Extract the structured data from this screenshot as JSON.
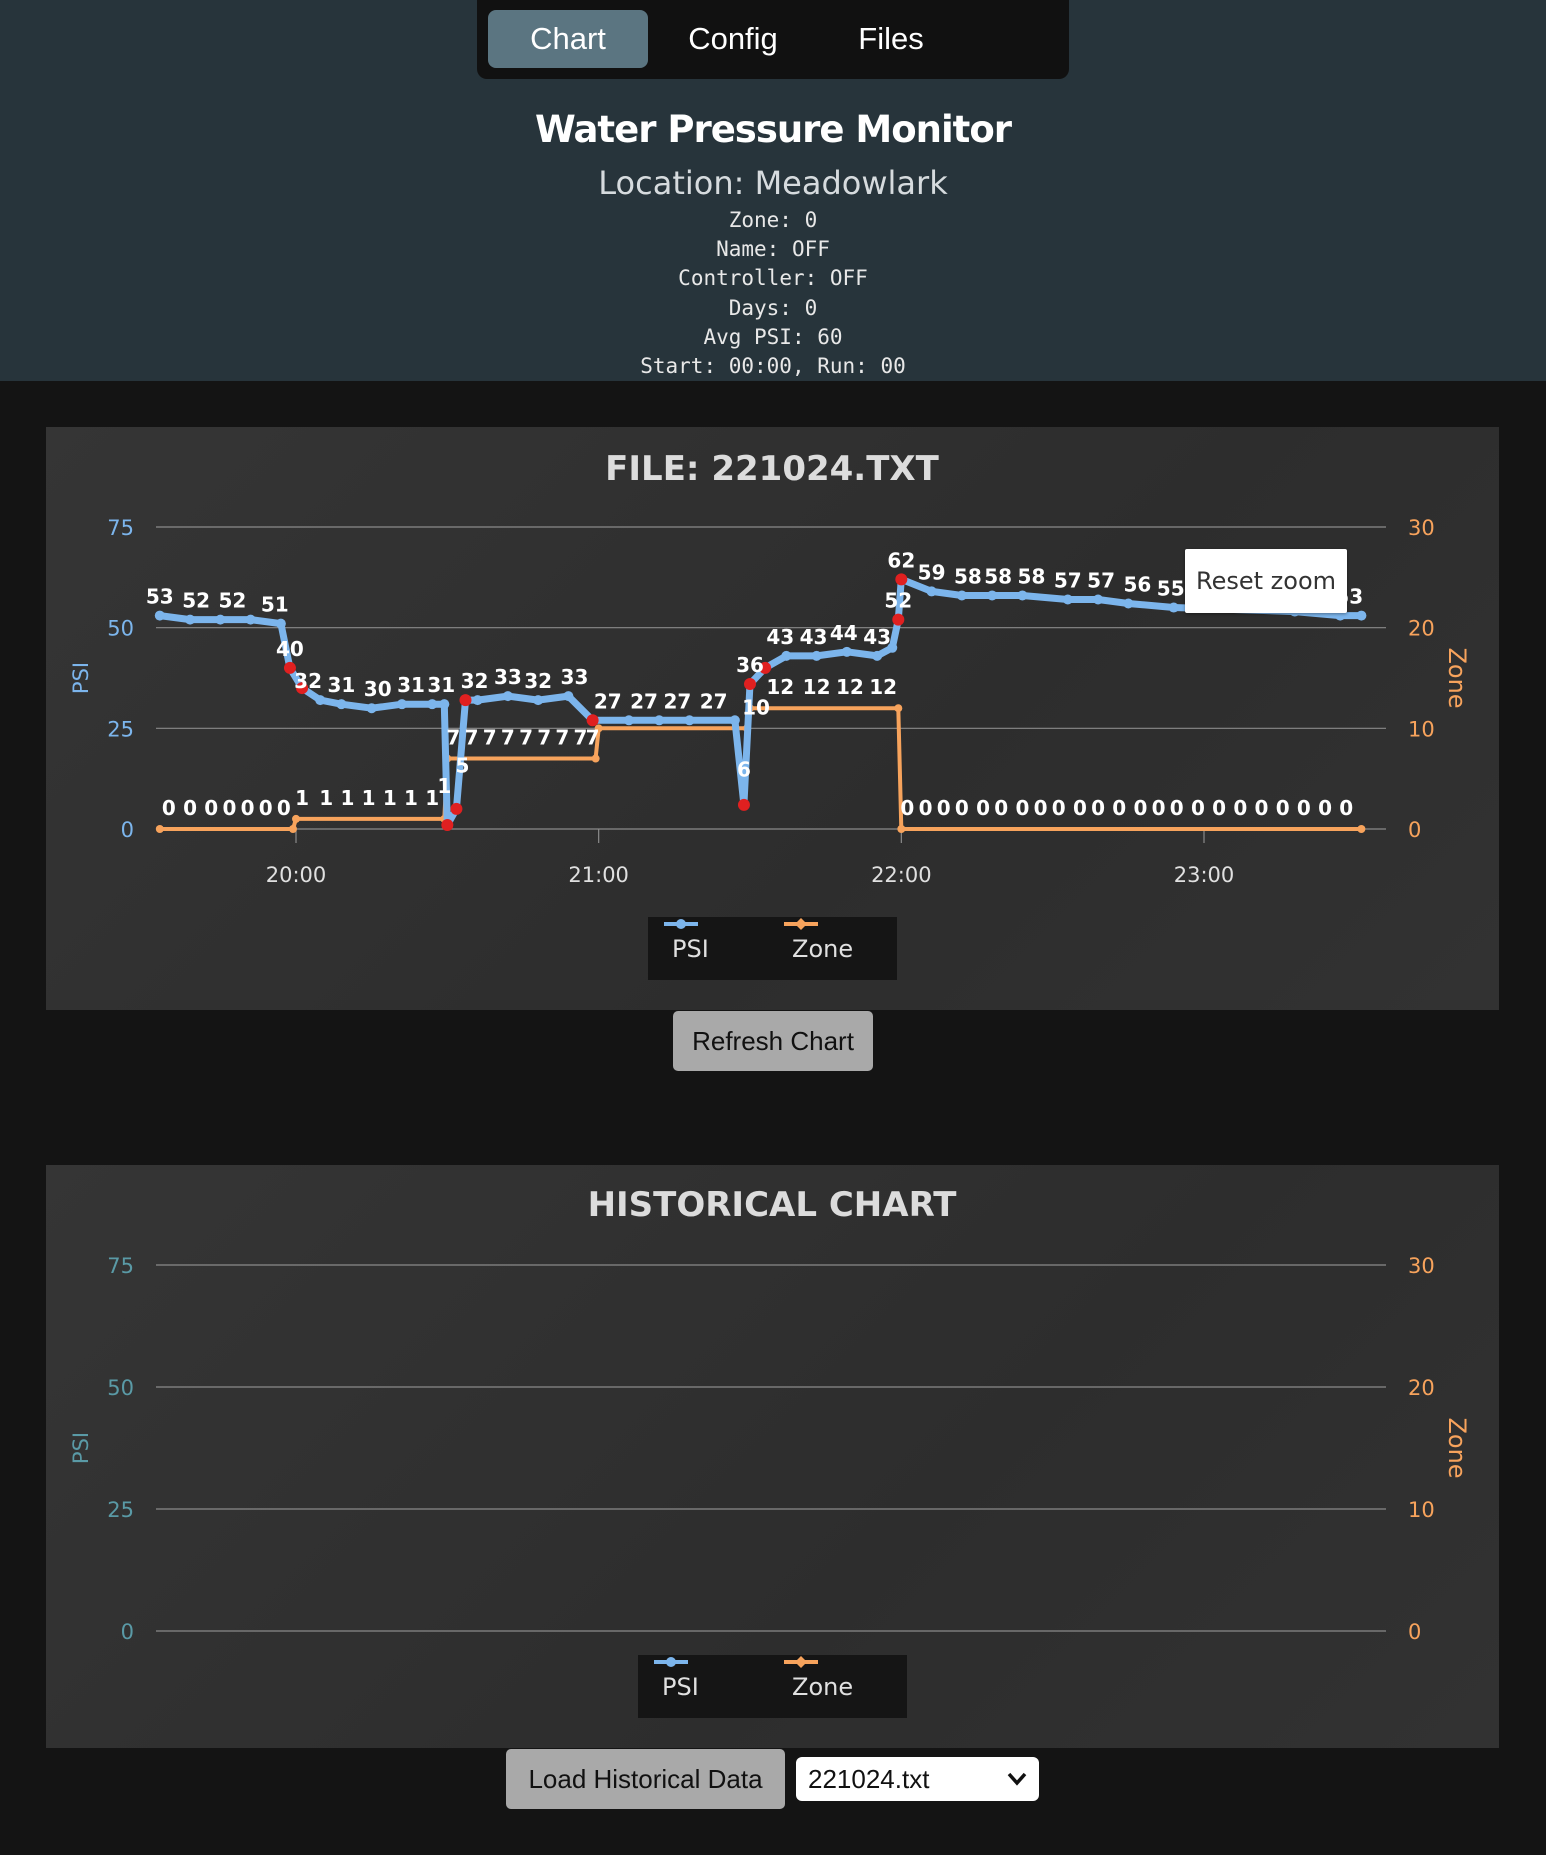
{
  "nav": {
    "tabs": [
      {
        "label": "Chart",
        "active": true
      },
      {
        "label": "Config"
      },
      {
        "label": "Files"
      }
    ]
  },
  "header": {
    "title": "Water Pressure Monitor",
    "location": "Location: Meadowlark",
    "zone": "Zone: 0",
    "name": "Name: OFF",
    "controller": "Controller: OFF",
    "days": "Days: 0",
    "avg_psi": "Avg PSI: 60",
    "start_run": "Start: 00:00, Run: 00"
  },
  "colors": {
    "psi": "#7cb5ec",
    "zone": "#f7a35c",
    "psi_marker_alert": "#e02020",
    "header_bg": "#27343b"
  },
  "chart_panel": {
    "reset_zoom_label": "Reset zoom",
    "refresh_label": "Refresh Chart"
  },
  "historical_panel": {
    "load_label": "Load Historical Data",
    "file_select_value": "221024.txt"
  },
  "chart_data": [
    {
      "type": "line",
      "title": "FILE: 221024.TXT",
      "ylabel": "PSI",
      "y2label": "Zone",
      "ylim": [
        0,
        75
      ],
      "y2lim": [
        0,
        30
      ],
      "y_ticks": [
        "0",
        "25",
        "50",
        "75"
      ],
      "y2_ticks": [
        "0",
        "10",
        "20",
        "30"
      ],
      "x_ticks": [
        "20:00",
        "21:00",
        "22:00",
        "23:00"
      ],
      "xlim_hours": [
        19.5,
        23.55
      ],
      "legend": [
        "PSI",
        "Zone"
      ],
      "grid": true,
      "series": [
        {
          "name": "PSI",
          "axis": "left",
          "points": [
            [
              19.55,
              53
            ],
            [
              19.65,
              52
            ],
            [
              19.75,
              52
            ],
            [
              19.85,
              52
            ],
            [
              19.95,
              51
            ],
            [
              19.98,
              40
            ],
            [
              20.02,
              35
            ],
            [
              20.08,
              32
            ],
            [
              20.15,
              31
            ],
            [
              20.25,
              30
            ],
            [
              20.35,
              31
            ],
            [
              20.45,
              31
            ],
            [
              20.49,
              31
            ],
            [
              20.5,
              1
            ],
            [
              20.53,
              5
            ],
            [
              20.56,
              32
            ],
            [
              20.6,
              32
            ],
            [
              20.7,
              33
            ],
            [
              20.8,
              32
            ],
            [
              20.9,
              33
            ],
            [
              20.98,
              27
            ],
            [
              21.1,
              27
            ],
            [
              21.2,
              27
            ],
            [
              21.3,
              27
            ],
            [
              21.45,
              27
            ],
            [
              21.48,
              6
            ],
            [
              21.5,
              36
            ],
            [
              21.55,
              40
            ],
            [
              21.62,
              43
            ],
            [
              21.72,
              43
            ],
            [
              21.82,
              44
            ],
            [
              21.92,
              43
            ],
            [
              21.97,
              45
            ],
            [
              21.99,
              52
            ],
            [
              22.0,
              62
            ],
            [
              22.1,
              59
            ],
            [
              22.2,
              58
            ],
            [
              22.3,
              58
            ],
            [
              22.4,
              58
            ],
            [
              22.55,
              57
            ],
            [
              22.65,
              57
            ],
            [
              22.75,
              56
            ],
            [
              22.9,
              55
            ],
            [
              23.3,
              54
            ],
            [
              23.45,
              53
            ],
            [
              23.52,
              53
            ]
          ],
          "data_labels": [
            [
              19.55,
              53,
              "53"
            ],
            [
              19.67,
              52,
              "52"
            ],
            [
              19.79,
              52,
              "52"
            ],
            [
              19.93,
              51,
              "51"
            ],
            [
              19.98,
              40,
              "40"
            ],
            [
              20.04,
              32,
              "32"
            ],
            [
              20.15,
              31,
              "31"
            ],
            [
              20.27,
              30,
              "30"
            ],
            [
              20.38,
              31,
              "31"
            ],
            [
              20.48,
              31,
              "31"
            ],
            [
              20.49,
              6,
              "1"
            ],
            [
              20.55,
              11,
              "5"
            ],
            [
              20.59,
              32,
              "32"
            ],
            [
              20.7,
              33,
              "33"
            ],
            [
              20.8,
              32,
              "32"
            ],
            [
              20.92,
              33,
              "33"
            ],
            [
              21.03,
              27,
              "27"
            ],
            [
              21.15,
              27,
              "27"
            ],
            [
              21.26,
              27,
              "27"
            ],
            [
              21.38,
              27,
              "27"
            ],
            [
              21.48,
              10,
              "6"
            ],
            [
              21.5,
              36,
              "36"
            ],
            [
              21.6,
              43,
              "43"
            ],
            [
              21.71,
              43,
              "43"
            ],
            [
              21.81,
              44,
              "44"
            ],
            [
              21.92,
              43,
              "43"
            ],
            [
              21.99,
              52,
              "52"
            ],
            [
              22.0,
              62,
              "62"
            ],
            [
              22.1,
              59,
              "59"
            ],
            [
              22.22,
              58,
              "58"
            ],
            [
              22.32,
              58,
              "58"
            ],
            [
              22.43,
              58,
              "58"
            ],
            [
              22.55,
              57,
              "57"
            ],
            [
              22.66,
              57,
              "57"
            ],
            [
              22.78,
              56,
              "56"
            ],
            [
              22.89,
              55,
              "55"
            ],
            [
              23.48,
              53,
              "53"
            ]
          ]
        },
        {
          "name": "Zone",
          "axis": "right",
          "points": [
            [
              19.55,
              0
            ],
            [
              19.99,
              0
            ],
            [
              20.0,
              1
            ],
            [
              20.49,
              1
            ],
            [
              20.5,
              7
            ],
            [
              20.99,
              7
            ],
            [
              21.0,
              10
            ],
            [
              21.49,
              10
            ],
            [
              21.5,
              12
            ],
            [
              21.99,
              12
            ],
            [
              22.0,
              0
            ],
            [
              23.52,
              0
            ]
          ],
          "data_labels": [
            [
              19.58,
              0,
              "0"
            ],
            [
              19.65,
              0,
              "0"
            ],
            [
              19.72,
              0,
              "0"
            ],
            [
              19.78,
              0,
              "0"
            ],
            [
              19.84,
              0,
              "0"
            ],
            [
              19.9,
              0,
              "0"
            ],
            [
              19.96,
              0,
              "0"
            ],
            [
              20.02,
              1,
              "1"
            ],
            [
              20.1,
              1,
              "1"
            ],
            [
              20.17,
              1,
              "1"
            ],
            [
              20.24,
              1,
              "1"
            ],
            [
              20.31,
              1,
              "1"
            ],
            [
              20.38,
              1,
              "1"
            ],
            [
              20.45,
              1,
              "1"
            ],
            [
              20.52,
              7,
              "7"
            ],
            [
              20.58,
              7,
              "7"
            ],
            [
              20.64,
              7,
              "7"
            ],
            [
              20.7,
              7,
              "7"
            ],
            [
              20.76,
              7,
              "7"
            ],
            [
              20.82,
              7,
              "7"
            ],
            [
              20.88,
              7,
              "7"
            ],
            [
              20.94,
              7,
              "7"
            ],
            [
              20.98,
              7,
              "7"
            ],
            [
              21.52,
              10,
              "10"
            ],
            [
              21.6,
              12,
              "12"
            ],
            [
              21.72,
              12,
              "12"
            ],
            [
              21.83,
              12,
              "12"
            ],
            [
              21.94,
              12,
              "12"
            ],
            [
              22.02,
              0,
              "0"
            ],
            [
              22.08,
              0,
              "0"
            ],
            [
              22.14,
              0,
              "0"
            ],
            [
              22.2,
              0,
              "0"
            ],
            [
              22.27,
              0,
              "0"
            ],
            [
              22.33,
              0,
              "0"
            ],
            [
              22.4,
              0,
              "0"
            ],
            [
              22.46,
              0,
              "0"
            ],
            [
              22.52,
              0,
              "0"
            ],
            [
              22.59,
              0,
              "0"
            ],
            [
              22.65,
              0,
              "0"
            ],
            [
              22.72,
              0,
              "0"
            ],
            [
              22.79,
              0,
              "0"
            ],
            [
              22.85,
              0,
              "0"
            ],
            [
              22.91,
              0,
              "0"
            ],
            [
              22.98,
              0,
              "0"
            ],
            [
              23.05,
              0,
              "0"
            ],
            [
              23.12,
              0,
              "0"
            ],
            [
              23.19,
              0,
              "0"
            ],
            [
              23.26,
              0,
              "0"
            ],
            [
              23.33,
              0,
              "0"
            ],
            [
              23.4,
              0,
              "0"
            ],
            [
              23.47,
              0,
              "0"
            ]
          ]
        }
      ]
    },
    {
      "type": "line",
      "title": "HISTORICAL CHART",
      "ylabel": "PSI",
      "y2label": "Zone",
      "ylim": [
        0,
        75
      ],
      "y2lim": [
        0,
        30
      ],
      "y_ticks": [
        "0",
        "25",
        "50",
        "75"
      ],
      "y2_ticks": [
        "0",
        "10",
        "20",
        "30"
      ],
      "legend": [
        "PSI",
        "Zone"
      ],
      "grid": true,
      "series": [
        {
          "name": "PSI",
          "axis": "left",
          "points": []
        },
        {
          "name": "Zone",
          "axis": "right",
          "points": []
        }
      ]
    }
  ]
}
